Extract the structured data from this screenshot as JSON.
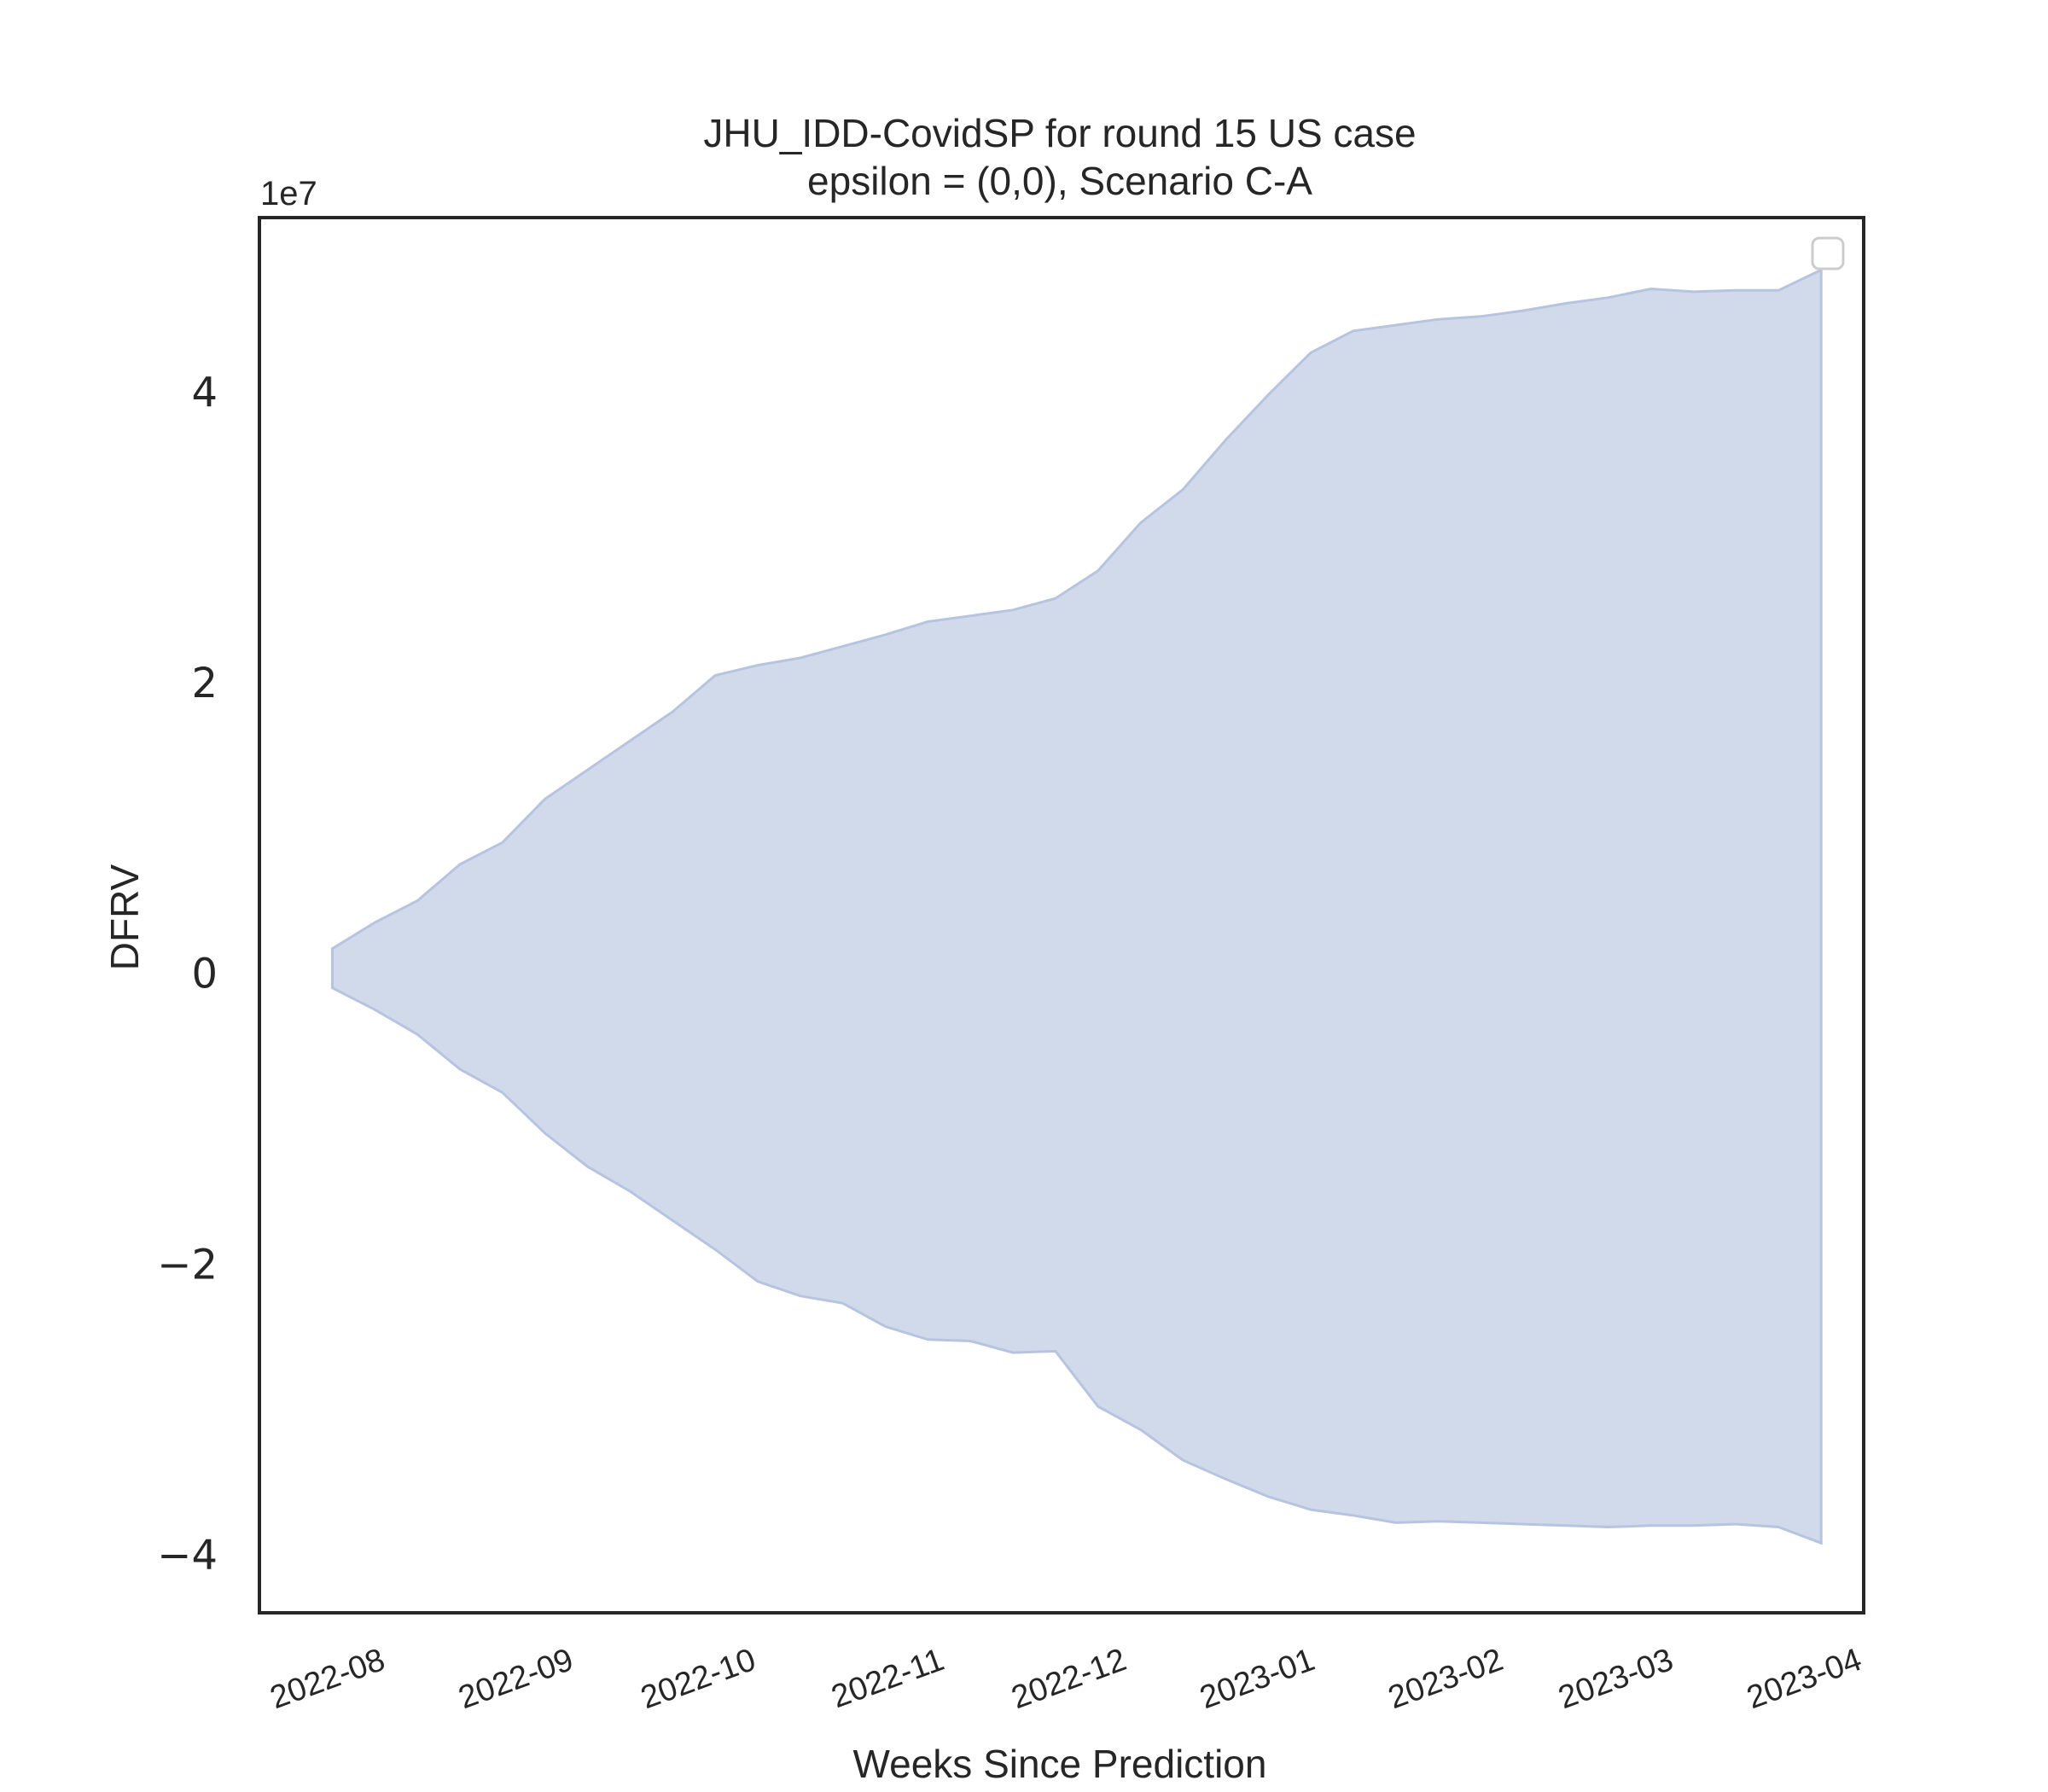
{
  "chart_data": {
    "type": "area",
    "title_line1": "JHU_IDD-CovidSP for round 15 US case",
    "title_line2": "epsilon = (0,0), Scenario C-A",
    "xlabel": "Weeks Since Prediction",
    "ylabel": "DFRV",
    "y_offset_label": "1e7",
    "y_scale": 10000000,
    "ylim": [
      -4.4,
      5.2
    ],
    "yticks": [
      -4,
      -2,
      0,
      2,
      4
    ],
    "ytick_labels": [
      "−4",
      "−2",
      "0",
      "2",
      "4"
    ],
    "xlim": [
      "2022-07-11",
      "2023-04-01"
    ],
    "xticks": [
      "2022-08-01",
      "2022-09-01",
      "2022-10-01",
      "2022-11-01",
      "2022-12-01",
      "2023-01-01",
      "2023-02-01",
      "2023-03-01",
      "2023-04-01"
    ],
    "xtick_labels": [
      "2022-08",
      "2022-09",
      "2022-10",
      "2022-11",
      "2022-12",
      "2023-01",
      "2023-02",
      "2023-03",
      "2023-04"
    ],
    "grid": false,
    "legend": "top-right",
    "fill_color": "#d1daeb",
    "edge_color": "#b7c4e0",
    "series": [
      {
        "dates": [
          "2022-07-23",
          "2022-07-30",
          "2022-08-06",
          "2022-08-13",
          "2022-08-20",
          "2022-08-27",
          "2022-09-03",
          "2022-09-10",
          "2022-09-17",
          "2022-09-24",
          "2022-10-01",
          "2022-10-08",
          "2022-10-15",
          "2022-10-22",
          "2022-10-29",
          "2022-11-05",
          "2022-11-12",
          "2022-11-19",
          "2022-11-26",
          "2022-12-03",
          "2022-12-10",
          "2022-12-17",
          "2022-12-24",
          "2022-12-31",
          "2023-01-07",
          "2023-01-14",
          "2023-01-21",
          "2023-01-28",
          "2023-02-04",
          "2023-02-11",
          "2023-02-18",
          "2023-02-25",
          "2023-03-04",
          "2023-03-11",
          "2023-03-18",
          "2023-03-25"
        ],
        "upper": [
          0.17,
          0.35,
          0.5,
          0.75,
          0.9,
          1.2,
          1.4,
          1.6,
          1.8,
          2.05,
          2.12,
          2.17,
          2.25,
          2.33,
          2.42,
          2.46,
          2.5,
          2.58,
          2.77,
          3.1,
          3.33,
          3.67,
          3.98,
          4.27,
          4.42,
          4.46,
          4.5,
          4.52,
          4.56,
          4.61,
          4.65,
          4.71,
          4.69,
          4.7,
          4.7,
          4.84
        ],
        "lower": [
          -0.1,
          -0.25,
          -0.42,
          -0.66,
          -0.82,
          -1.1,
          -1.33,
          -1.5,
          -1.7,
          -1.9,
          -2.12,
          -2.22,
          -2.27,
          -2.43,
          -2.52,
          -2.53,
          -2.61,
          -2.6,
          -2.98,
          -3.14,
          -3.35,
          -3.48,
          -3.6,
          -3.69,
          -3.73,
          -3.78,
          -3.77,
          -3.78,
          -3.79,
          -3.8,
          -3.81,
          -3.8,
          -3.8,
          -3.79,
          -3.81,
          -3.92
        ]
      }
    ]
  }
}
